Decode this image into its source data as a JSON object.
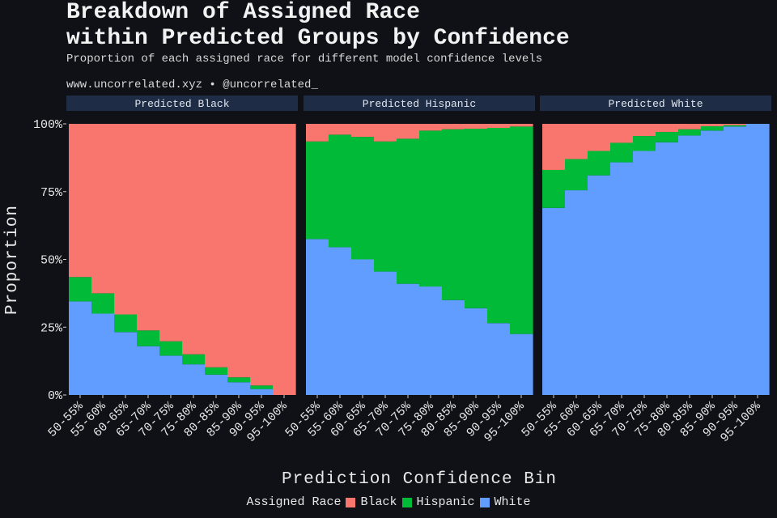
{
  "header": {
    "title": "Breakdown of Assigned Race\nwithin Predicted Groups by Confidence",
    "subtitle": "Proportion of each assigned race for different model confidence levels",
    "caption": "www.uncorrelated.xyz • @uncorrelated_"
  },
  "colors": {
    "Black": "#f8766d",
    "Hispanic": "#00ba38",
    "White": "#619cff",
    "strip_bg": "#1e2d45",
    "background": "#0f1117"
  },
  "chart_data": {
    "type": "area",
    "stacked": true,
    "xlabel": "Prediction Confidence Bin",
    "ylabel": "Proportion",
    "ylim": [
      0,
      1
    ],
    "yticks": [
      "0%",
      "25%",
      "50%",
      "75%",
      "100%"
    ],
    "categories": [
      "50-55%",
      "55-60%",
      "60-65%",
      "65-70%",
      "70-75%",
      "75-80%",
      "80-85%",
      "85-90%",
      "90-95%",
      "95-100%"
    ],
    "legend": {
      "title": "Assigned Race",
      "position": "bottom",
      "entries": [
        "Black",
        "Hispanic",
        "White"
      ]
    },
    "panels": [
      {
        "label": "Predicted Black",
        "series": [
          {
            "name": "White",
            "values": [
              0.345,
              0.3,
              0.232,
              0.18,
              0.145,
              0.113,
              0.075,
              0.047,
              0.022,
              0.0
            ]
          },
          {
            "name": "Hispanic",
            "values": [
              0.09,
              0.075,
              0.065,
              0.058,
              0.053,
              0.037,
              0.027,
              0.018,
              0.013,
              0.0
            ]
          },
          {
            "name": "Black",
            "values": [
              0.565,
              0.625,
              0.703,
              0.762,
              0.802,
              0.85,
              0.898,
              0.935,
              0.965,
              1.0
            ]
          }
        ]
      },
      {
        "label": "Predicted Hispanic",
        "series": [
          {
            "name": "White",
            "values": [
              0.575,
              0.545,
              0.5,
              0.455,
              0.41,
              0.4,
              0.35,
              0.32,
              0.265,
              0.225
            ]
          },
          {
            "name": "Hispanic",
            "values": [
              0.36,
              0.415,
              0.452,
              0.48,
              0.535,
              0.575,
              0.63,
              0.662,
              0.72,
              0.765
            ]
          },
          {
            "name": "Black",
            "values": [
              0.065,
              0.04,
              0.048,
              0.065,
              0.055,
              0.025,
              0.02,
              0.018,
              0.015,
              0.01
            ]
          }
        ]
      },
      {
        "label": "Predicted White",
        "series": [
          {
            "name": "White",
            "values": [
              0.69,
              0.755,
              0.81,
              0.858,
              0.9,
              0.932,
              0.957,
              0.975,
              0.99,
              1.0
            ]
          },
          {
            "name": "Hispanic",
            "values": [
              0.14,
              0.115,
              0.09,
              0.072,
              0.055,
              0.038,
              0.023,
              0.016,
              0.005,
              0.0
            ]
          },
          {
            "name": "Black",
            "values": [
              0.17,
              0.13,
              0.1,
              0.07,
              0.045,
              0.03,
              0.02,
              0.009,
              0.005,
              0.0
            ]
          }
        ]
      }
    ]
  }
}
